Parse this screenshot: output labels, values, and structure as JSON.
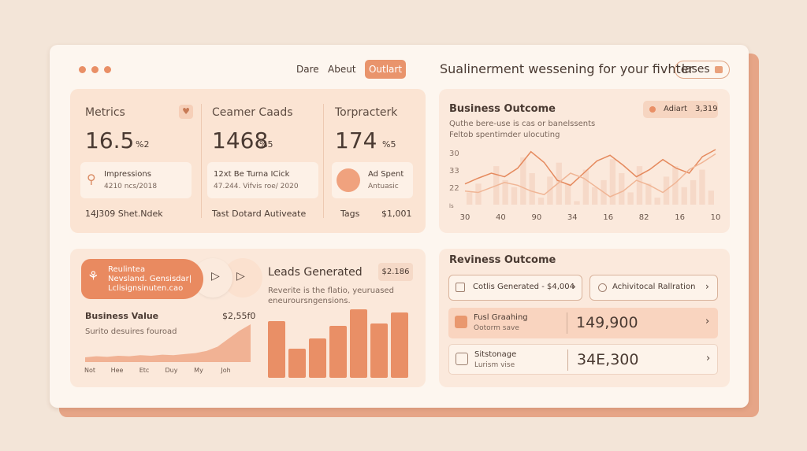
{
  "header": {
    "nav": [
      "Dare",
      "Abeut"
    ],
    "button": "Outlart",
    "title": "Sualinerment wessening for your fivhter",
    "pill": "lases"
  },
  "metrics": [
    {
      "label": "Metrics",
      "value": "16.5",
      "unit": "%2",
      "card_title": "Impressions",
      "card_sub": "4210 ncs/2018"
    },
    {
      "label": "Ceamer Caads",
      "value": "1468",
      "unit": "%5",
      "card_title": "12xt Be Turna ICick",
      "card_sub": "47.244. Vifvis roe/ 2020"
    },
    {
      "label": "Torpracterk",
      "value": "174",
      "unit": "%5",
      "card_title": "Ad Spent",
      "card_sub": "Antuasic"
    }
  ],
  "metrics_footer": [
    "14J309 Shet.Ndek",
    "Tast Dotard Autiveate",
    "Tags",
    "$1,001"
  ],
  "business_outcome": {
    "title": "Business Outcome",
    "badge_label": "Adiart",
    "badge_value": "3,319",
    "subtitle": [
      "Quthe bere-use is cas or banelssents",
      "Feltob spentimder ulocuting"
    ],
    "chart": {
      "type": "line",
      "yticks": [
        "30",
        "33",
        "22",
        "ls"
      ],
      "xticks": [
        "30",
        "40",
        "90",
        "34",
        "16",
        "82",
        "16",
        "10"
      ],
      "series": [
        {
          "color": "#e58a5e",
          "values": [
            40,
            48,
            55,
            50,
            62,
            85,
            70,
            45,
            38,
            55,
            72,
            80,
            66,
            50,
            60,
            74,
            62,
            55,
            78,
            88
          ]
        },
        {
          "color": "#f0b595",
          "values": [
            30,
            28,
            35,
            42,
            38,
            30,
            25,
            40,
            55,
            48,
            35,
            22,
            30,
            45,
            38,
            28,
            42,
            60,
            70,
            82
          ]
        }
      ],
      "bars": [
        55,
        60,
        48,
        70,
        62,
        58,
        75,
        66,
        52,
        64,
        72,
        60,
        50,
        68,
        58,
        62,
        74,
        66,
        55,
        70,
        60,
        52,
        64,
        70,
        58,
        62,
        68,
        56
      ]
    }
  },
  "promo": {
    "lines": [
      "Reulintea",
      "Nevsland. Gensisdar|",
      "Lclisignsinuten.cao"
    ]
  },
  "business_value": {
    "title": "Business Value",
    "value": "$2,55f0",
    "subtitle": "Surito desuires fouroad",
    "chart": {
      "type": "area",
      "color": "#eea07c",
      "categories": [
        "Not",
        "Hee",
        "Etc",
        "Duy",
        "My",
        "Joh"
      ],
      "values": [
        10,
        12,
        11,
        13,
        12,
        14,
        13,
        15,
        14,
        16,
        18,
        22,
        30,
        45,
        60,
        72
      ]
    }
  },
  "leads": {
    "title": "Leads Generated",
    "badge": "$2.186",
    "subtitle": [
      "Reverite is the flatio, yeuruased",
      "eneuroursngensions."
    ],
    "chart": {
      "type": "bar",
      "color": "#e98f66",
      "values": [
        72,
        37,
        50,
        66,
        87,
        69,
        83
      ]
    }
  },
  "reviness": {
    "title": "Reviness Outcome",
    "buttons": [
      "Cotlis Generated - $4,004",
      "Achivitocal Rallration"
    ],
    "rows": [
      {
        "title": "Fusl Graahing",
        "sub": "Ootorm save",
        "value": "149,900"
      },
      {
        "title": "Sitstonage",
        "sub": "Lurism vise",
        "value": "34E,300"
      }
    ]
  }
}
